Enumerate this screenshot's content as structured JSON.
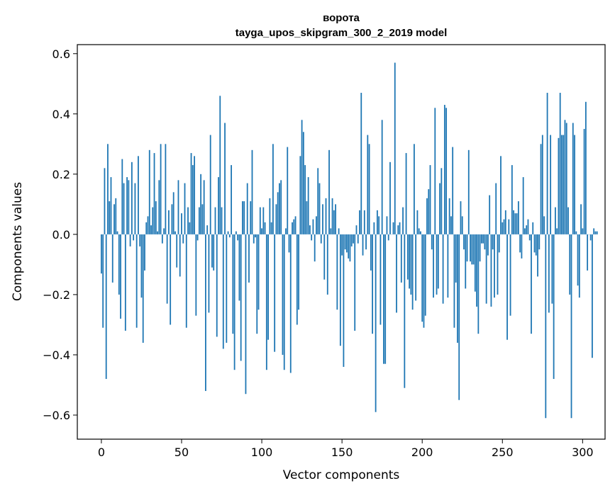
{
  "chart_data": {
    "type": "bar",
    "title": "ворота",
    "subtitle": "tayga_upos_skipgram_300_2_2019 model",
    "xlabel": "Vector components",
    "ylabel": "Components values",
    "xlim": [
      -15,
      314
    ],
    "ylim": [
      -0.68,
      0.63
    ],
    "x_ticks": [
      0,
      50,
      100,
      150,
      200,
      250,
      300
    ],
    "y_ticks": [
      -0.6,
      -0.4,
      -0.2,
      0.0,
      0.2,
      0.4,
      0.6
    ],
    "y_tick_labels": [
      "−0.6",
      "−0.4",
      "−0.2",
      "0.0",
      "0.2",
      "0.4",
      "0.6"
    ],
    "grid": false,
    "bar_color": "#1f77b4",
    "x_start": 0,
    "values": [
      -0.13,
      -0.31,
      0.22,
      -0.48,
      0.3,
      0.11,
      0.19,
      -0.16,
      0.1,
      0.12,
      0.01,
      -0.2,
      -0.28,
      0.25,
      0.17,
      -0.32,
      0.19,
      0.18,
      -0.04,
      0.24,
      -0.02,
      0.17,
      -0.31,
      0.26,
      -0.04,
      -0.21,
      -0.36,
      -0.12,
      0.04,
      0.06,
      0.28,
      0.03,
      0.09,
      0.27,
      0.11,
      0.01,
      0.18,
      0.3,
      -0.03,
      0.02,
      0.3,
      -0.23,
      0.08,
      -0.3,
      0.1,
      0.14,
      0.01,
      -0.11,
      0.18,
      -0.14,
      0.07,
      -0.03,
      0.17,
      -0.31,
      0.09,
      0.04,
      0.27,
      0.23,
      0.26,
      -0.27,
      -0.02,
      0.09,
      0.2,
      0.1,
      0.18,
      -0.52,
      0.03,
      -0.26,
      0.33,
      -0.11,
      -0.12,
      0.09,
      -0.34,
      0.19,
      0.46,
      0.09,
      -0.38,
      0.37,
      -0.36,
      0.01,
      -0.01,
      0.23,
      -0.33,
      -0.45,
      0.01,
      -0.02,
      -0.22,
      -0.42,
      0.11,
      0.11,
      -0.53,
      0.17,
      -0.16,
      0.11,
      0.28,
      -0.03,
      -0.01,
      -0.33,
      -0.25,
      0.09,
      0.02,
      0.09,
      0.04,
      -0.45,
      -0.35,
      0.12,
      0.04,
      0.3,
      -0.39,
      0.1,
      0.14,
      0.17,
      0.18,
      -0.4,
      -0.45,
      0.02,
      0.29,
      -0.06,
      -0.46,
      0.04,
      0.05,
      0.06,
      -0.3,
      -0.25,
      0.26,
      0.38,
      0.34,
      0.23,
      0.11,
      0.19,
      0.03,
      -0.02,
      0.05,
      -0.09,
      0.06,
      0.22,
      0.17,
      -0.03,
      0.1,
      -0.15,
      0.12,
      -0.2,
      0.28,
      0.02,
      0.12,
      0.08,
      0.1,
      -0.25,
      0.02,
      -0.37,
      -0.07,
      -0.44,
      -0.05,
      -0.06,
      -0.08,
      -0.09,
      -0.04,
      -0.03,
      -0.32,
      0.03,
      -0.03,
      0.08,
      0.47,
      -0.07,
      0.08,
      -0.05,
      0.33,
      0.3,
      -0.12,
      -0.33,
      0.04,
      -0.59,
      0.08,
      0.06,
      -0.3,
      0.38,
      -0.43,
      -0.43,
      0.06,
      -0.02,
      0.24,
      0.0,
      0.04,
      0.57,
      -0.26,
      0.03,
      0.04,
      -0.16,
      0.09,
      -0.51,
      0.27,
      -0.15,
      -0.18,
      -0.2,
      -0.25,
      0.3,
      -0.22,
      0.08,
      0.02,
      0.01,
      -0.29,
      -0.31,
      -0.27,
      0.12,
      0.15,
      0.23,
      -0.05,
      -0.21,
      0.42,
      -0.2,
      -0.18,
      0.17,
      0.22,
      -0.23,
      0.43,
      0.42,
      -0.21,
      0.12,
      0.06,
      0.29,
      -0.31,
      -0.16,
      -0.36,
      -0.55,
      0.11,
      0.06,
      -0.05,
      -0.18,
      -0.09,
      0.28,
      -0.09,
      -0.1,
      -0.1,
      -0.19,
      -0.24,
      -0.33,
      -0.09,
      -0.03,
      -0.03,
      -0.05,
      -0.23,
      -0.07,
      0.13,
      -0.24,
      -0.05,
      -0.21,
      0.17,
      -0.2,
      -0.06,
      0.26,
      0.04,
      0.05,
      0.08,
      -0.35,
      0.05,
      -0.27,
      0.23,
      0.08,
      0.07,
      0.07,
      0.11,
      -0.06,
      -0.08,
      0.19,
      0.02,
      0.03,
      0.05,
      -0.02,
      -0.33,
      0.04,
      -0.06,
      -0.07,
      -0.14,
      -0.05,
      0.3,
      0.33,
      0.06,
      -0.61,
      0.47,
      -0.26,
      0.33,
      -0.23,
      -0.48,
      0.09,
      0.02,
      0.32,
      0.47,
      0.33,
      0.33,
      0.38,
      0.37,
      0.09,
      -0.2,
      -0.61,
      0.37,
      0.33,
      0.01,
      -0.17,
      -0.21,
      0.1,
      0.02,
      0.35,
      0.44,
      -0.12,
      0.0,
      -0.02,
      -0.41,
      0.02,
      0.01,
      0.01
    ]
  }
}
